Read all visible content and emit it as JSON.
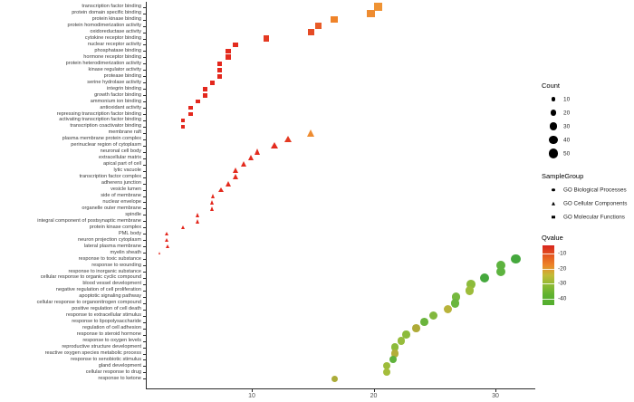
{
  "chart_data": {
    "type": "scatter",
    "title": "",
    "xlabel": "",
    "ylabel": "",
    "x_ticks": [
      10,
      20,
      30
    ],
    "xlim": [
      1.3,
      33.2
    ],
    "grid": false,
    "legend_position": "right",
    "size_encoding": "Count",
    "color_encoding": "Qvalue",
    "shape_encoding": "SampleGroup",
    "points": [
      {
        "label": "transcription factor binding",
        "group": "GO Molecular Functions",
        "shape": "square",
        "x": 20.3,
        "count": 45,
        "qvalue": -19,
        "color": "#ef9334"
      },
      {
        "label": "protein domain specific binding",
        "group": "GO Molecular Functions",
        "shape": "square",
        "x": 19.7,
        "count": 40,
        "qvalue": -19,
        "color": "#ee8c31"
      },
      {
        "label": "protein kinase binding",
        "group": "GO Molecular Functions",
        "shape": "square",
        "x": 16.7,
        "count": 35,
        "qvalue": -18,
        "color": "#ef8329"
      },
      {
        "label": "protein homodimerization activity",
        "group": "GO Molecular Functions",
        "shape": "square",
        "x": 15.4,
        "count": 30,
        "qvalue": -14,
        "color": "#e85c28"
      },
      {
        "label": "oxidoreductase activity",
        "group": "GO Molecular Functions",
        "shape": "square",
        "x": 14.8,
        "count": 30,
        "qvalue": -13,
        "color": "#e54b25"
      },
      {
        "label": "cytokine receptor binding",
        "group": "GO Molecular Functions",
        "shape": "square",
        "x": 11.1,
        "count": 25,
        "qvalue": -11,
        "color": "#e43a22"
      },
      {
        "label": "nuclear receptor activity",
        "group": "GO Molecular Functions",
        "shape": "square",
        "x": 8.6,
        "count": 20,
        "qvalue": -10,
        "color": "#e32b1e"
      },
      {
        "label": "phosphatase binding",
        "group": "GO Molecular Functions",
        "shape": "square",
        "x": 8.0,
        "count": 20,
        "qvalue": -10,
        "color": "#e32b1e"
      },
      {
        "label": "hormone receptor binding",
        "group": "GO Molecular Functions",
        "shape": "square",
        "x": 8.0,
        "count": 20,
        "qvalue": -10,
        "color": "#e32b1e"
      },
      {
        "label": "protein heterodimerization activity",
        "group": "GO Molecular Functions",
        "shape": "square",
        "x": 7.3,
        "count": 18,
        "qvalue": -9,
        "color": "#e3271d"
      },
      {
        "label": "kinase regulator activity",
        "group": "GO Molecular Functions",
        "shape": "square",
        "x": 7.3,
        "count": 18,
        "qvalue": -9,
        "color": "#e3271d"
      },
      {
        "label": "protease binding",
        "group": "GO Molecular Functions",
        "shape": "square",
        "x": 7.3,
        "count": 18,
        "qvalue": -9,
        "color": "#e3271d"
      },
      {
        "label": "serine hydrolase activity",
        "group": "GO Molecular Functions",
        "shape": "square",
        "x": 6.7,
        "count": 15,
        "qvalue": -9,
        "color": "#e3271d"
      },
      {
        "label": "integrin binding",
        "group": "GO Molecular Functions",
        "shape": "square",
        "x": 6.1,
        "count": 15,
        "qvalue": -9,
        "color": "#e3271d"
      },
      {
        "label": "growth factor binding",
        "group": "GO Molecular Functions",
        "shape": "square",
        "x": 6.1,
        "count": 15,
        "qvalue": -9,
        "color": "#e3271d"
      },
      {
        "label": "ammonium ion binding",
        "group": "GO Molecular Functions",
        "shape": "square",
        "x": 5.5,
        "count": 12,
        "qvalue": -9,
        "color": "#e3271d"
      },
      {
        "label": "antioxidant activity",
        "group": "GO Molecular Functions",
        "shape": "square",
        "x": 4.9,
        "count": 12,
        "qvalue": -9,
        "color": "#e3271d"
      },
      {
        "label": "repressing transcription factor binding",
        "group": "GO Molecular Functions",
        "shape": "square",
        "x": 4.9,
        "count": 12,
        "qvalue": -9,
        "color": "#e3271d"
      },
      {
        "label": "activating transcription factor binding",
        "group": "GO Molecular Functions",
        "shape": "square",
        "x": 4.3,
        "count": 10,
        "qvalue": -9,
        "color": "#e3271d"
      },
      {
        "label": "transcription coactivator binding",
        "group": "GO Molecular Functions",
        "shape": "square",
        "x": 4.3,
        "count": 10,
        "qvalue": -9,
        "color": "#e3271d"
      },
      {
        "label": "membrane raft",
        "group": "GO Cellular Components",
        "shape": "triangle",
        "x": 14.8,
        "count": 30,
        "qvalue": -18,
        "color": "#ee8c31"
      },
      {
        "label": "plasma membrane protein complex",
        "group": "GO Cellular Components",
        "shape": "triangle",
        "x": 12.9,
        "count": 25,
        "qvalue": -11,
        "color": "#e43a22"
      },
      {
        "label": "perinuclear region of cytoplasm",
        "group": "GO Cellular Components",
        "shape": "triangle",
        "x": 11.8,
        "count": 25,
        "qvalue": -10,
        "color": "#e32b1e"
      },
      {
        "label": "neuronal cell body",
        "group": "GO Cellular Components",
        "shape": "triangle",
        "x": 10.4,
        "count": 22,
        "qvalue": -10,
        "color": "#e32b1e"
      },
      {
        "label": "extracellular matrix",
        "group": "GO Cellular Components",
        "shape": "triangle",
        "x": 9.9,
        "count": 20,
        "qvalue": -10,
        "color": "#e32b1e"
      },
      {
        "label": "apical part of cell",
        "group": "GO Cellular Components",
        "shape": "triangle",
        "x": 9.3,
        "count": 20,
        "qvalue": -10,
        "color": "#e32b1e"
      },
      {
        "label": "lytic vacuole",
        "group": "GO Cellular Components",
        "shape": "triangle",
        "x": 8.6,
        "count": 18,
        "qvalue": -10,
        "color": "#e32b1e"
      },
      {
        "label": "transcription factor complex",
        "group": "GO Cellular Components",
        "shape": "triangle",
        "x": 8.6,
        "count": 18,
        "qvalue": -10,
        "color": "#e32b1e"
      },
      {
        "label": "adherens junction",
        "group": "GO Cellular Components",
        "shape": "triangle",
        "x": 8.0,
        "count": 16,
        "qvalue": -10,
        "color": "#e32b1e"
      },
      {
        "label": "vesicle lumen",
        "group": "GO Cellular Components",
        "shape": "triangle",
        "x": 7.4,
        "count": 15,
        "qvalue": -10,
        "color": "#e32b1e"
      },
      {
        "label": "side of membrane",
        "group": "GO Cellular Components",
        "shape": "triangle",
        "x": 6.8,
        "count": 14,
        "qvalue": -10,
        "color": "#e32b1e"
      },
      {
        "label": "nuclear envelope",
        "group": "GO Cellular Components",
        "shape": "triangle",
        "x": 6.7,
        "count": 14,
        "qvalue": -9,
        "color": "#e3271d"
      },
      {
        "label": "organelle outer membrane",
        "group": "GO Cellular Components",
        "shape": "triangle",
        "x": 6.7,
        "count": 14,
        "qvalue": -9,
        "color": "#e3271d"
      },
      {
        "label": "spindle",
        "group": "GO Cellular Components",
        "shape": "triangle",
        "x": 5.5,
        "count": 12,
        "qvalue": -9,
        "color": "#e3271d"
      },
      {
        "label": "integral component of postsynaptic membrane",
        "group": "GO Cellular Components",
        "shape": "triangle",
        "x": 5.5,
        "count": 12,
        "qvalue": -9,
        "color": "#e3271d"
      },
      {
        "label": "protein kinase complex",
        "group": "GO Cellular Components",
        "shape": "triangle",
        "x": 4.3,
        "count": 10,
        "qvalue": -9,
        "color": "#e3271d"
      },
      {
        "label": "PML body",
        "group": "GO Cellular Components",
        "shape": "triangle",
        "x": 3.0,
        "count": 10,
        "qvalue": -9,
        "color": "#e3271d"
      },
      {
        "label": "neuron projection cytoplasm",
        "group": "GO Cellular Components",
        "shape": "triangle",
        "x": 3.0,
        "count": 10,
        "qvalue": -9,
        "color": "#e3271d"
      },
      {
        "label": "lateral plasma membrane",
        "group": "GO Cellular Components",
        "shape": "triangle",
        "x": 3.0,
        "count": 8,
        "qvalue": -9,
        "color": "#e3271d"
      },
      {
        "label": "myelin sheath",
        "group": "GO Cellular Components",
        "shape": "triangle",
        "x": 2.4,
        "count": 4,
        "qvalue": -9,
        "color": "#e3271d"
      },
      {
        "label": "response to toxic substance",
        "group": "GO Biological Processes",
        "shape": "circle",
        "x": 31.6,
        "count": 48,
        "qvalue": -36,
        "color": "#45a83d"
      },
      {
        "label": "response to wounding",
        "group": "GO Biological Processes",
        "shape": "circle",
        "x": 30.4,
        "count": 45,
        "qvalue": -34,
        "color": "#5db33f"
      },
      {
        "label": "response to inorganic substance",
        "group": "GO Biological Processes",
        "shape": "circle",
        "x": 30.4,
        "count": 45,
        "qvalue": -34,
        "color": "#5db33f"
      },
      {
        "label": "cellular response to organic cyclic compound",
        "group": "GO Biological Processes",
        "shape": "circle",
        "x": 29.0,
        "count": 45,
        "qvalue": -36,
        "color": "#45a83d"
      },
      {
        "label": "blood vessel development",
        "group": "GO Biological Processes",
        "shape": "circle",
        "x": 27.9,
        "count": 42,
        "qvalue": -30,
        "color": "#8cbb3b"
      },
      {
        "label": "negative regulation of cell proliferation",
        "group": "GO Biological Processes",
        "shape": "circle",
        "x": 27.8,
        "count": 40,
        "qvalue": -29,
        "color": "#9dbc3a"
      },
      {
        "label": "apoptotic signaling pathway",
        "group": "GO Biological Processes",
        "shape": "circle",
        "x": 26.7,
        "count": 40,
        "qvalue": -32,
        "color": "#76b93f"
      },
      {
        "label": "cellular response to organonitrogen compound",
        "group": "GO Biological Processes",
        "shape": "circle",
        "x": 26.6,
        "count": 40,
        "qvalue": -33,
        "color": "#6ab63e"
      },
      {
        "label": "positive regulation of cell death",
        "group": "GO Biological Processes",
        "shape": "circle",
        "x": 26.0,
        "count": 38,
        "qvalue": -26,
        "color": "#b8b33b"
      },
      {
        "label": "response to extracellular stimulus",
        "group": "GO Biological Processes",
        "shape": "circle",
        "x": 24.8,
        "count": 36,
        "qvalue": -31,
        "color": "#82b83e"
      },
      {
        "label": "response to lipopolysaccharide",
        "group": "GO Biological Processes",
        "shape": "circle",
        "x": 24.1,
        "count": 35,
        "qvalue": -33,
        "color": "#6ab43c"
      },
      {
        "label": "regulation of cell adhesion",
        "group": "GO Biological Processes",
        "shape": "circle",
        "x": 23.4,
        "count": 33,
        "qvalue": -27,
        "color": "#afab38"
      },
      {
        "label": "response to steroid hormone",
        "group": "GO Biological Processes",
        "shape": "circle",
        "x": 22.6,
        "count": 32,
        "qvalue": -30,
        "color": "#8cbb3b"
      },
      {
        "label": "response to oxygen levels",
        "group": "GO Biological Processes",
        "shape": "circle",
        "x": 22.2,
        "count": 32,
        "qvalue": -29,
        "color": "#96bc3c"
      },
      {
        "label": "reproductive structure development",
        "group": "GO Biological Processes",
        "shape": "circle",
        "x": 21.7,
        "count": 30,
        "qvalue": -30,
        "color": "#8cbb3b"
      },
      {
        "label": "reactive oxygen species metabolic process",
        "group": "GO Biological Processes",
        "shape": "circle",
        "x": 21.7,
        "count": 30,
        "qvalue": -26,
        "color": "#b3ae3a"
      },
      {
        "label": "response to xenobiotic stimulus",
        "group": "GO Biological Processes",
        "shape": "circle",
        "x": 21.5,
        "count": 28,
        "qvalue": -34,
        "color": "#5fb23c"
      },
      {
        "label": "gland development",
        "group": "GO Biological Processes",
        "shape": "circle",
        "x": 21.0,
        "count": 28,
        "qvalue": -29,
        "color": "#9dbc3a"
      },
      {
        "label": "cellular response to drug",
        "group": "GO Biological Processes",
        "shape": "circle",
        "x": 21.0,
        "count": 28,
        "qvalue": -28,
        "color": "#a4bd3b"
      },
      {
        "label": "response to ketone",
        "group": "GO Biological Processes",
        "shape": "circle",
        "x": 16.7,
        "count": 22,
        "qvalue": -26,
        "color": "#abac39"
      }
    ]
  },
  "legend": {
    "count": {
      "title": "Count",
      "sizes": [
        10,
        20,
        30,
        40,
        50
      ],
      "marker_color": "#000000"
    },
    "samplegroup": {
      "title": "SampleGroup",
      "items": [
        {
          "label": "GO Biological Processes",
          "shape": "circle"
        },
        {
          "label": "GO Cellular Components",
          "shape": "triangle"
        },
        {
          "label": "GO Molecular Functions",
          "shape": "square"
        }
      ]
    },
    "qvalue": {
      "title": "Qvalue",
      "ticks": [
        -10,
        -20,
        -30,
        -40
      ],
      "gradient": [
        "#d7241e",
        "#e4571f",
        "#ec8429",
        "#c3bb37",
        "#8cba35",
        "#5eb230",
        "#54ae2f"
      ]
    }
  },
  "axis": {
    "x_tick_labels": [
      "10",
      "20",
      "30"
    ],
    "line_color": "#2b2b2b",
    "tick_label_color": "#4d4d4d"
  }
}
